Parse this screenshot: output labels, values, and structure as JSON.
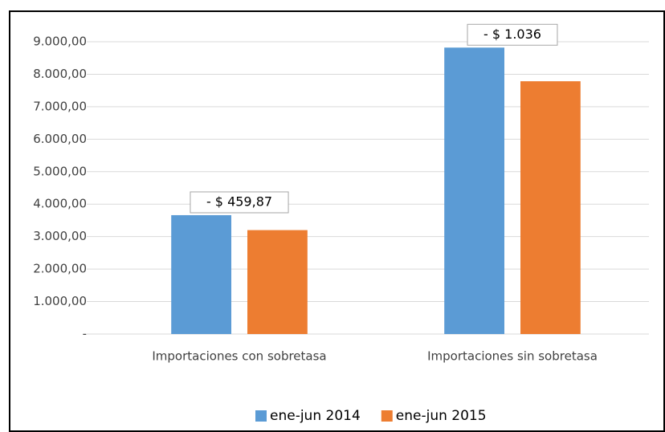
{
  "chart_data": {
    "type": "bar",
    "categories": [
      "Importaciones con sobretasa",
      "Importaciones sin sobretasa"
    ],
    "series": [
      {
        "name": "ene-jun 2014",
        "color": "#5b9bd5",
        "values": [
          3660,
          8820
        ]
      },
      {
        "name": "ene-jun 2015",
        "color": "#ed7d31",
        "values": [
          3200,
          7784
        ]
      }
    ],
    "annotations": [
      "- $ 459,87",
      "- $ 1.036"
    ],
    "ylim": [
      0,
      9000
    ],
    "yticks": [
      {
        "value": 0,
        "label": "-"
      },
      {
        "value": 1000,
        "label": "1.000,00"
      },
      {
        "value": 2000,
        "label": "2.000,00"
      },
      {
        "value": 3000,
        "label": "3.000,00"
      },
      {
        "value": 4000,
        "label": "4.000,00"
      },
      {
        "value": 5000,
        "label": "5.000,00"
      },
      {
        "value": 6000,
        "label": "6.000,00"
      },
      {
        "value": 7000,
        "label": "7.000,00"
      },
      {
        "value": 8000,
        "label": "8.000,00"
      },
      {
        "value": 9000,
        "label": "9.000,00"
      }
    ],
    "grid": true,
    "legend": "bottom"
  }
}
